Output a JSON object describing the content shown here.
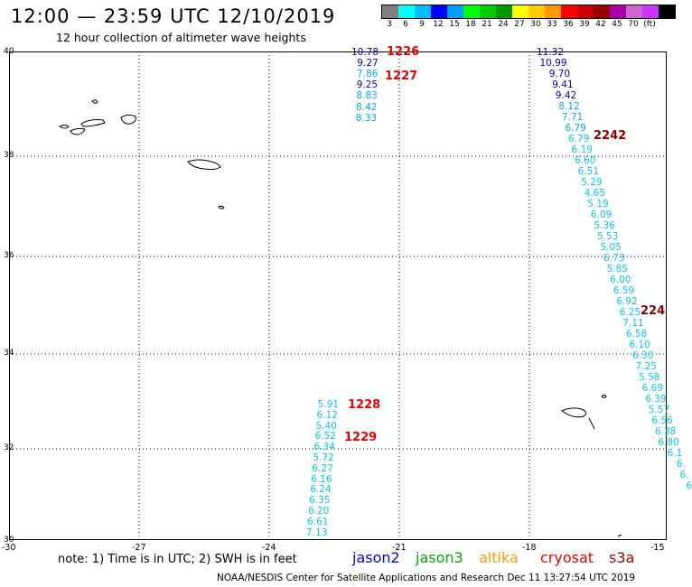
{
  "header": {
    "title": "12:00 — 23:59 UTC 12/10/2019",
    "subtitle": "12 hour collection of altimeter wave heights"
  },
  "legend": {
    "colors": [
      "#808080",
      "#00ffff",
      "#00bfff",
      "#0000ff",
      "#00a0ff",
      "#00ff00",
      "#00cc00",
      "#009900",
      "#ffff00",
      "#ffcc00",
      "#ff9900",
      "#ff0000",
      "#cc0000",
      "#990000",
      "#aa00aa",
      "#cc66cc",
      "#cc33ff",
      "#000000"
    ],
    "labels": [
      "3",
      "6",
      "9",
      "12",
      "15",
      "18",
      "21",
      "24",
      "27",
      "30",
      "33",
      "36",
      "39",
      "42",
      "45",
      "70",
      "(ft)"
    ]
  },
  "axes": {
    "y_labels": [
      "40",
      "38",
      "36",
      "34",
      "32",
      "30"
    ],
    "x_labels": [
      "-30",
      "-27",
      "-24",
      "-21",
      "-18",
      "-15"
    ]
  },
  "tracks": [
    {
      "group": "a",
      "color": "#0000cc",
      "values": [
        "10.78",
        "9.27"
      ]
    },
    {
      "group": "a",
      "color": "#00aaff",
      "values": [
        "7.86"
      ]
    },
    {
      "group": "a",
      "color": "#0000cc",
      "values": [
        "9.25"
      ]
    },
    {
      "group": "a",
      "color": "#00aaff",
      "values": [
        "8.83",
        "8.42",
        "8.33"
      ]
    }
  ],
  "track_a": [
    "10.78",
    "9.27",
    "7.86",
    "9.25",
    "8.83",
    "8.42",
    "8.33"
  ],
  "track_a_colors": [
    "#0000cc",
    "#0000cc",
    "#00aaff",
    "#0000cc",
    "#00aaff",
    "#00aaff",
    "#00aaff"
  ],
  "track_b": [
    "11.32",
    "10.99",
    "9.70",
    "9.41",
    "9.42",
    "8.12",
    "7.71",
    "6.79",
    "6.79",
    "6.19",
    "6.60",
    "6.51",
    "5.29",
    "4.65",
    "5.19",
    "6.09",
    "5.36",
    "5.53",
    "5.05",
    "6.73",
    "5.85",
    "6.00",
    "6.59",
    "6.92",
    "6.25",
    "7.11",
    "6.58",
    "6.10",
    "6.30",
    "7.25",
    "5.58",
    "6.69",
    "6.39",
    "5.57",
    "6.56",
    "6.38",
    "6.80",
    "6.1",
    "6.",
    "6.",
    "6"
  ],
  "track_b_colors": [
    "#0000cc",
    "#0000cc",
    "#0000cc",
    "#0000cc",
    "#0000cc",
    "#00aaff",
    "#00aaff",
    "#00aaff",
    "#00ccee",
    "#00ccee",
    "#00ccee",
    "#00ccee",
    "#00ccee",
    "#00ccee",
    "#00ccee",
    "#00ccee",
    "#00ccee",
    "#00ccee",
    "#00ccee",
    "#00ccee",
    "#00ccee",
    "#00ccee",
    "#00ccee",
    "#00ccee",
    "#00ccee",
    "#00ccee",
    "#00ccee",
    "#00ccee",
    "#00ccee",
    "#00ccee",
    "#00ccee",
    "#00ccee",
    "#00ccee",
    "#00ccee",
    "#00ccee",
    "#00ccee",
    "#00ccee",
    "#00ccee",
    "#00ccee",
    "#00ccee",
    "#00ccee"
  ],
  "track_c": [
    "5.91",
    "6.12",
    "5.40",
    "6.52",
    "6.34",
    "5.72",
    "6.27",
    "6.16",
    "6.24",
    "6.35",
    "6.20",
    "6.61",
    "7.13"
  ],
  "time_labels": [
    {
      "text": "1226",
      "color": "#ee0000"
    },
    {
      "text": "1227",
      "color": "#ee0000"
    },
    {
      "text": "2242",
      "color": "#880000"
    },
    {
      "text": "224",
      "color": "#880000"
    },
    {
      "text": "1228",
      "color": "#ee0000"
    },
    {
      "text": "1229",
      "color": "#ee0000"
    }
  ],
  "footer": {
    "note": "note: 1) Time is in UTC; 2) SWH is in feet",
    "satellites": [
      {
        "name": "jason2",
        "color": "#0000ee"
      },
      {
        "name": "jason3",
        "color": "#00aa00"
      },
      {
        "name": "altika",
        "color": "#ff9900"
      },
      {
        "name": "cryosat",
        "color": "#ee0000"
      },
      {
        "name": "s3a",
        "color": "#aa0000"
      }
    ],
    "credit": "NOAA/NESDIS Center for Satellite Applications and Research    Dec 11 13:27:54 UTC 2019"
  }
}
